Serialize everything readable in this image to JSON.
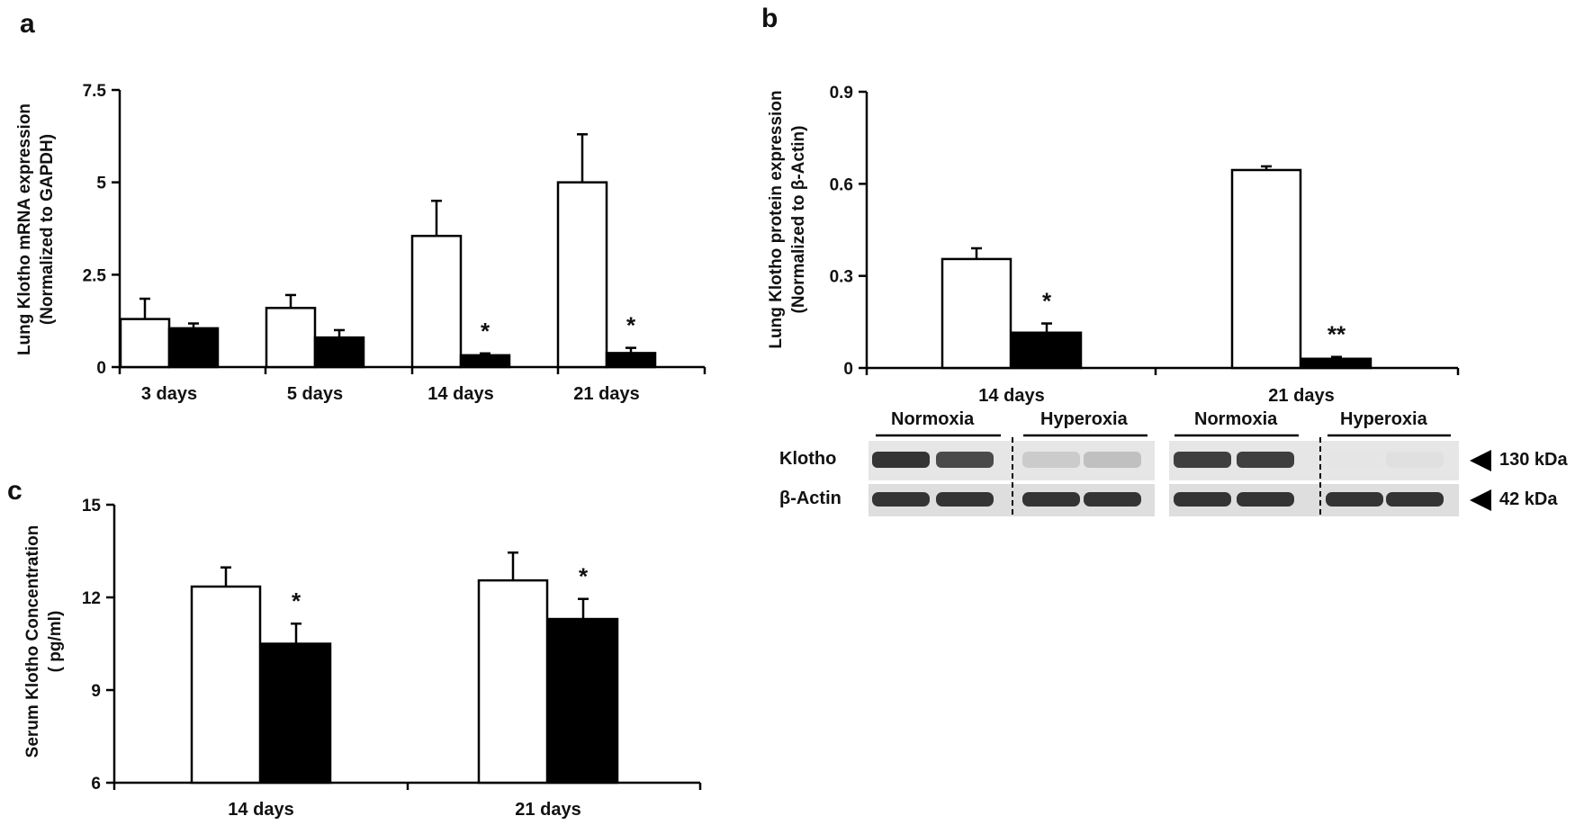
{
  "panels": {
    "a": "a",
    "b": "b",
    "c": "c"
  },
  "chart_data": [
    {
      "id": "a",
      "type": "bar",
      "ylabel_line1": "Lung Klotho mRNA expression",
      "ylabel_line2": "(Normalized to GAPDH)",
      "ylim": [
        0,
        7.5
      ],
      "yticks": [
        0,
        2.5,
        5,
        7.5
      ],
      "ytick_labels": [
        "0",
        "2.5",
        "5",
        "7.5"
      ],
      "categories": [
        "3  days",
        "5 days",
        "14 days",
        "21 days"
      ],
      "series": [
        {
          "values": [
            1.3,
            1.6,
            3.55,
            5.0
          ],
          "errors": [
            0.55,
            0.35,
            0.95,
            1.3
          ],
          "color": "#ffffff"
        },
        {
          "values": [
            1.05,
            0.8,
            0.32,
            0.38
          ],
          "errors": [
            0.13,
            0.2,
            0.05,
            0.14
          ],
          "color": "#000000"
        }
      ],
      "annotations": [
        "",
        "",
        "*",
        "*"
      ],
      "grid": false
    },
    {
      "id": "b",
      "type": "bar",
      "ylabel_line1": "Lung Klotho protein expression",
      "ylabel_line2": "(Normalized to β-Actin)",
      "ylim": [
        0,
        0.9
      ],
      "yticks": [
        0,
        0.3,
        0.6,
        0.9
      ],
      "ytick_labels": [
        "0",
        "0.3",
        "0.6",
        "0.9"
      ],
      "categories": [
        "14 days",
        "21 days"
      ],
      "series": [
        {
          "values": [
            0.355,
            0.645
          ],
          "errors": [
            0.035,
            0.012
          ],
          "color": "#ffffff"
        },
        {
          "values": [
            0.115,
            0.03
          ],
          "errors": [
            0.03,
            0.006
          ],
          "color": "#000000"
        }
      ],
      "annotations": [
        "*",
        "**"
      ],
      "grid": false
    },
    {
      "id": "c",
      "type": "bar",
      "ylabel_line1": "Serum Klotho Concentration",
      "ylabel_line2": "( pg/ml)",
      "ylim": [
        6,
        15
      ],
      "yticks": [
        6,
        9,
        12,
        15
      ],
      "ytick_labels": [
        "6",
        "9",
        "12",
        "15"
      ],
      "categories": [
        "14 days",
        "21 days"
      ],
      "series": [
        {
          "values": [
            12.35,
            12.55
          ],
          "errors": [
            0.62,
            0.9
          ],
          "color": "#ffffff"
        },
        {
          "values": [
            10.5,
            11.3
          ],
          "errors": [
            0.65,
            0.65
          ],
          "color": "#000000"
        }
      ],
      "annotations": [
        "*",
        "*"
      ],
      "grid": false
    }
  ],
  "blot": {
    "groups": [
      "Normoxia",
      "Hyperoxia",
      "Normoxia",
      "Hyperoxia"
    ],
    "rows": [
      "Klotho",
      "β-Actin"
    ],
    "markers": [
      "130 kDa",
      "42 kDa"
    ],
    "klotho_band_intensity": [
      0.85,
      0.75,
      0.15,
      0.2,
      0.8,
      0.8,
      0.03,
      0.05
    ],
    "actin_band_intensity": [
      0.85,
      0.85,
      0.85,
      0.85,
      0.85,
      0.85,
      0.85,
      0.85
    ]
  }
}
